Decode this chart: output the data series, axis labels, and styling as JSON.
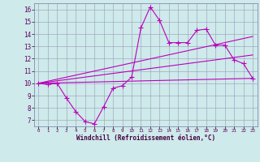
{
  "xlabel": "Windchill (Refroidissement éolien,°C)",
  "bg_color": "#ceeaea",
  "line_color": "#bb00bb",
  "grid_color": "#9999bb",
  "x_ticks": [
    0,
    1,
    2,
    3,
    4,
    5,
    6,
    7,
    8,
    9,
    10,
    11,
    12,
    13,
    14,
    15,
    16,
    17,
    18,
    19,
    20,
    21,
    22,
    23
  ],
  "y_ticks": [
    7,
    8,
    9,
    10,
    11,
    12,
    13,
    14,
    15,
    16
  ],
  "xlim": [
    -0.5,
    23.5
  ],
  "ylim": [
    6.5,
    16.5
  ],
  "line1_x": [
    0,
    1,
    2,
    3,
    4,
    5,
    6,
    7,
    8,
    9,
    10,
    11,
    12,
    13,
    14,
    15,
    16,
    17,
    18,
    19,
    20,
    21,
    22,
    23
  ],
  "line1_y": [
    10.0,
    9.9,
    10.0,
    8.8,
    7.7,
    6.9,
    6.7,
    8.1,
    9.6,
    9.8,
    10.5,
    14.5,
    16.2,
    15.1,
    13.3,
    13.3,
    13.3,
    14.3,
    14.4,
    13.1,
    13.1,
    11.9,
    11.6,
    10.4
  ],
  "line2_x": [
    0,
    23
  ],
  "line2_y": [
    10.0,
    10.4
  ],
  "line3_x": [
    0,
    23
  ],
  "line3_y": [
    10.0,
    13.8
  ],
  "line4_x": [
    0,
    23
  ],
  "line4_y": [
    10.0,
    12.3
  ]
}
